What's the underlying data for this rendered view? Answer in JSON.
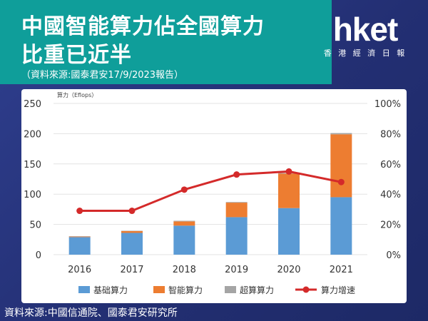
{
  "header": {
    "title_line1": "中國智能算力佔全國算力",
    "title_line2": "比重已近半",
    "subtitle": "（資料來源:國泰君安17/9/2023報告）"
  },
  "logo": {
    "word": "hket",
    "tagline": "香 港 經 濟 日 報"
  },
  "source": "資料來源:中國信通院、國泰君安研究所",
  "colors": {
    "basic": "#5b9bd5",
    "intelligent": "#ed7d31",
    "super": "#a5a5a5",
    "growth": "#d42a2a",
    "banner": "#0f9e9a"
  },
  "chart_data": {
    "type": "bar",
    "stacked": true,
    "unit_label": "算力（Eflops）",
    "categories": [
      "2016",
      "2017",
      "2018",
      "2019",
      "2020",
      "2021"
    ],
    "series": [
      {
        "name": "基础算力",
        "values": [
          29,
          36,
          48,
          62,
          77,
          95
        ]
      },
      {
        "name": "智能算力",
        "values": [
          1,
          3,
          7,
          24,
          57,
          104
        ]
      },
      {
        "name": "超算算力",
        "values": [
          0.5,
          0.5,
          1,
          1,
          1,
          2
        ]
      }
    ],
    "line_series": {
      "name": "算力增速",
      "axis": "right",
      "values": [
        29,
        29,
        43,
        53,
        55,
        48
      ]
    },
    "ylim": [
      0,
      250
    ],
    "y_ticks": [
      "0",
      "50",
      "100",
      "150",
      "200",
      "250"
    ],
    "y2lim": [
      0,
      100
    ],
    "y2_ticks": [
      "0%",
      "20%",
      "40%",
      "60%",
      "80%",
      "100%"
    ],
    "legend_position": "bottom",
    "grid": true
  }
}
